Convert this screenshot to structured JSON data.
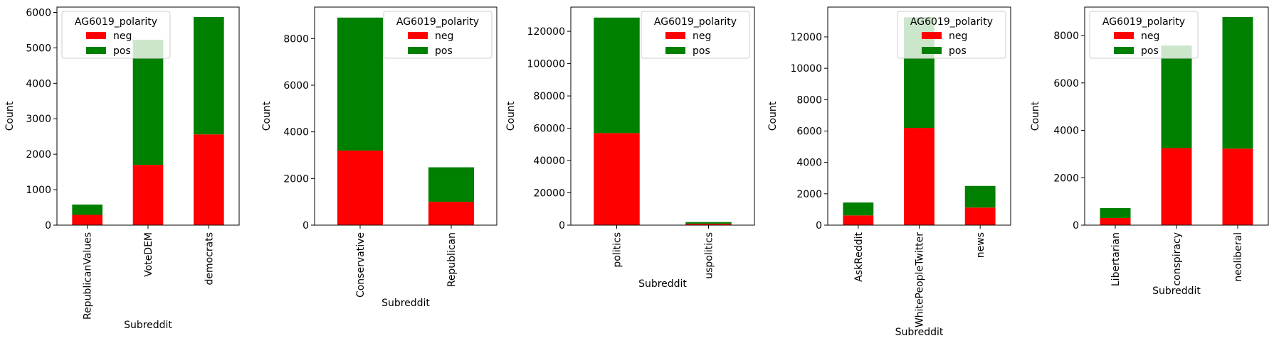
{
  "legend_title": "AG6019_polarity",
  "colors": {
    "neg": "#ff0000",
    "pos": "#008000"
  },
  "chart_data": [
    {
      "type": "bar",
      "stacked": true,
      "xlabel": "Subreddit",
      "ylabel": "Count",
      "categories": [
        "RepublicanValues",
        "VoteDEM",
        "democrats"
      ],
      "series": [
        {
          "name": "neg",
          "values": [
            290,
            1700,
            2560
          ]
        },
        {
          "name": "pos",
          "values": [
            290,
            3530,
            3310
          ]
        }
      ],
      "ylim": [
        0,
        6150
      ],
      "yticks": [
        0,
        1000,
        2000,
        3000,
        4000,
        5000,
        6000
      ],
      "legend_position": "upper-left"
    },
    {
      "type": "bar",
      "stacked": true,
      "xlabel": "Subreddit",
      "ylabel": "Count",
      "categories": [
        "Conservative",
        "Republican"
      ],
      "series": [
        {
          "name": "neg",
          "values": [
            3200,
            1000
          ]
        },
        {
          "name": "pos",
          "values": [
            5700,
            1480
          ]
        }
      ],
      "ylim": [
        0,
        9350
      ],
      "yticks": [
        0,
        2000,
        4000,
        6000,
        8000
      ],
      "legend_position": "upper-right"
    },
    {
      "type": "bar",
      "stacked": true,
      "xlabel": "Subreddit",
      "ylabel": "Count",
      "categories": [
        "politics",
        "uspolitics"
      ],
      "series": [
        {
          "name": "neg",
          "values": [
            57000,
            900
          ]
        },
        {
          "name": "pos",
          "values": [
            71500,
            1000
          ]
        }
      ],
      "ylim": [
        0,
        135000
      ],
      "yticks": [
        0,
        20000,
        40000,
        60000,
        80000,
        100000,
        120000
      ],
      "legend_position": "upper-right"
    },
    {
      "type": "bar",
      "stacked": true,
      "xlabel": "Subreddit",
      "ylabel": "Count",
      "categories": [
        "AskReddit",
        "WhitePeopleTwitter",
        "news"
      ],
      "series": [
        {
          "name": "neg",
          "values": [
            620,
            6200,
            1120
          ]
        },
        {
          "name": "pos",
          "values": [
            820,
            7050,
            1380
          ]
        }
      ],
      "ylim": [
        0,
        13900
      ],
      "yticks": [
        0,
        2000,
        4000,
        6000,
        8000,
        10000,
        12000
      ],
      "legend_position": "upper-right"
    },
    {
      "type": "bar",
      "stacked": true,
      "xlabel": "Subreddit",
      "ylabel": "Count",
      "categories": [
        "Libertarian",
        "conspiracy",
        "neoliberal"
      ],
      "series": [
        {
          "name": "neg",
          "values": [
            300,
            3250,
            3230
          ]
        },
        {
          "name": "pos",
          "values": [
            420,
            4330,
            5550
          ]
        }
      ],
      "ylim": [
        0,
        9200
      ],
      "yticks": [
        0,
        2000,
        4000,
        6000,
        8000
      ],
      "legend_position": "upper-left"
    }
  ]
}
